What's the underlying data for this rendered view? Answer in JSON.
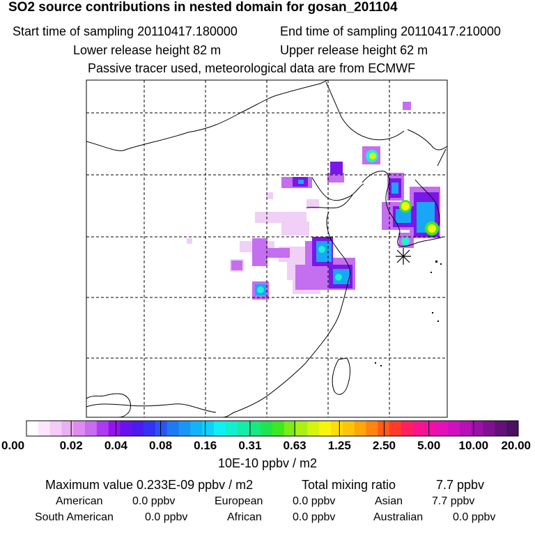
{
  "header": {
    "title": "SO2 source contributions in nested domain for gosan_201104",
    "start": "Start time of sampling 20110417.180000",
    "end": "End time of sampling 20110417.210000",
    "lower": "Lower release height   82 m",
    "upper": "Upper release height   62 m",
    "tracer": "Passive tracer used, meteorological data are from ECMWF"
  },
  "chart_data": {
    "type": "heatmap",
    "title": "SO2 source contributions in nested domain for gosan_201104",
    "colorbar": {
      "ticks": [
        "0.00",
        "0.02",
        "0.04",
        "0.08",
        "0.16",
        "0.31",
        "0.63",
        "1.25",
        "2.50",
        "5.00",
        "10.00",
        "20.00"
      ],
      "unit": "10E-10 ppbv / m2",
      "colors": [
        "#ffffff",
        "#fbe6fb",
        "#f4ccf6",
        "#eab0f2",
        "#dd8bf0",
        "#c76cf0",
        "#ad3cf0",
        "#9314ea",
        "#6a12ec",
        "#4d1aef",
        "#3433f2",
        "#2a55f3",
        "#1f79f6",
        "#1896f7",
        "#11b4f8",
        "#0fd0f8",
        "#0ff0f4",
        "#10f0d0",
        "#14eca8",
        "#18e880",
        "#1fe450",
        "#3de820",
        "#7aec18",
        "#aaf014",
        "#d4f410",
        "#f8f40c",
        "#ffdc0a",
        "#ffc40a",
        "#ffa60a",
        "#ff8410",
        "#ff5a18",
        "#ff3a28",
        "#ff2060",
        "#f8148c",
        "#f010a8",
        "#e410b8",
        "#d010c0",
        "#b810b8",
        "#9c10a8",
        "#801090",
        "#641078",
        "#4c1060"
      ]
    },
    "maximum": "0.233E-09 ppbv / m2",
    "total_mixing_ratio": "7.7 ppbv",
    "receptor": "gosan",
    "plumes": [
      {
        "level": 3,
        "lon": 124.2,
        "lat": 31.9
      },
      {
        "level": 3,
        "lon": 118.2,
        "lat": 38.2
      },
      {
        "level": 8,
        "lon": 121.0,
        "lat": 32.3
      },
      {
        "level": 9,
        "lon": 127.2,
        "lat": 36.0
      },
      {
        "level": 10,
        "lon": 127.6,
        "lat": 36.3
      },
      {
        "level": 10,
        "lon": 129.1,
        "lat": 35.3
      }
    ]
  },
  "legend": {
    "max_text": "Maximum value  0.233E-09 ppbv / m2",
    "total_text": "Total mixing ratio",
    "total_value": "7.7 ppbv",
    "regions": [
      {
        "name": "American",
        "value": "0.0 ppbv"
      },
      {
        "name": "European",
        "value": "0.0 ppbv"
      },
      {
        "name": "Asian",
        "value": "7.7 ppbv"
      },
      {
        "name": "South American",
        "value": "0.0 ppbv"
      },
      {
        "name": "African",
        "value": "0.0 ppbv"
      },
      {
        "name": "Australian",
        "value": "0.0 ppbv"
      }
    ]
  }
}
